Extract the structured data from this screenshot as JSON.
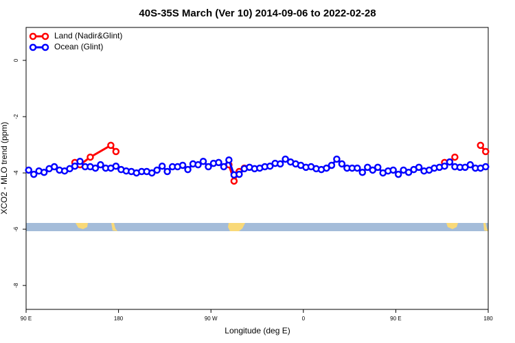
{
  "chart_data": {
    "type": "line",
    "title": "40S-35S March (Ver 10)   2014-09-06 to 2022-02-28",
    "x_label": "Longitude (deg E)",
    "y_label": "XCO2 - MLO trend (ppm)",
    "xlim": [
      90,
      540
    ],
    "ylim": [
      -8.85,
      1.17
    ],
    "xticks": [
      {
        "value": 90,
        "label": "90 E"
      },
      {
        "value": 180,
        "label": "180"
      },
      {
        "value": 270,
        "label": "90 W"
      },
      {
        "value": 360,
        "label": "0"
      },
      {
        "value": 450,
        "label": "90 E"
      },
      {
        "value": 540,
        "label": "180"
      }
    ],
    "yticks": [
      0,
      -2,
      -4,
      -6,
      -8
    ],
    "legend": "top-left",
    "series": [
      {
        "name": "Land (Nadir&Glint)",
        "color": "#ff0000",
        "x": [
          137.5,
          142.5,
          152.5,
          172.5,
          177.5,
          null,
          287.5,
          292.5,
          297.5,
          302.5,
          null,
          497.5,
          502.5,
          507.5,
          null,
          532.5,
          537.5
        ],
        "values": [
          -3.63,
          -3.71,
          -3.44,
          -3.02,
          -3.24,
          null,
          -3.71,
          -4.29,
          -3.95,
          -3.83,
          null,
          -3.63,
          -3.61,
          -3.44,
          null,
          -3.02,
          -3.24
        ]
      },
      {
        "name": "Ocean (Glint)",
        "color": "#0000ff",
        "x": [
          92.5,
          97.5,
          102.5,
          107.5,
          112.5,
          117.5,
          122.5,
          127.5,
          132.5,
          137.5,
          142.5,
          147.5,
          152.5,
          157.5,
          162.5,
          167.5,
          172.5,
          177.5,
          182.5,
          187.5,
          192.5,
          197.5,
          202.5,
          207.5,
          212.5,
          217.5,
          222.5,
          227.5,
          232.5,
          237.5,
          242.5,
          247.5,
          252.5,
          257.5,
          262.5,
          267.5,
          272.5,
          277.5,
          282.5,
          287.5,
          292.5,
          297.5,
          302.5,
          307.5,
          312.5,
          317.5,
          322.5,
          327.5,
          332.5,
          337.5,
          342.5,
          347.5,
          352.5,
          357.5,
          362.5,
          367.5,
          372.5,
          377.5,
          382.5,
          387.5,
          392.5,
          397.5,
          402.5,
          407.5,
          412.5,
          417.5,
          422.5,
          427.5,
          432.5,
          437.5,
          442.5,
          447.5,
          452.5,
          457.5,
          462.5,
          467.5,
          472.5,
          477.5,
          482.5,
          487.5,
          492.5,
          497.5,
          502.5,
          507.5,
          512.5,
          517.5,
          522.5,
          527.5,
          532.5,
          537.5
        ],
        "values": [
          -3.9,
          -4.05,
          -3.93,
          -3.98,
          -3.85,
          -3.78,
          -3.9,
          -3.93,
          -3.85,
          -3.76,
          -3.59,
          -3.78,
          -3.78,
          -3.83,
          -3.71,
          -3.83,
          -3.83,
          -3.76,
          -3.88,
          -3.93,
          -3.95,
          -4.0,
          -3.95,
          -3.95,
          -4.0,
          -3.9,
          -3.76,
          -3.95,
          -3.78,
          -3.78,
          -3.73,
          -3.88,
          -3.68,
          -3.71,
          -3.59,
          -3.78,
          -3.66,
          -3.63,
          -3.78,
          -3.54,
          -4.07,
          -4.05,
          -3.85,
          -3.8,
          -3.85,
          -3.83,
          -3.78,
          -3.76,
          -3.66,
          -3.68,
          -3.51,
          -3.61,
          -3.68,
          -3.73,
          -3.8,
          -3.78,
          -3.85,
          -3.88,
          -3.83,
          -3.73,
          -3.51,
          -3.68,
          -3.83,
          -3.83,
          -3.83,
          -3.98,
          -3.8,
          -3.9,
          -3.8,
          -4.0,
          -3.93,
          -3.9,
          -4.05,
          -3.9,
          -3.98,
          -3.88,
          -3.8,
          -3.93,
          -3.9,
          -3.83,
          -3.8,
          -3.76,
          -3.61,
          -3.78,
          -3.8,
          -3.8,
          -3.71,
          -3.83,
          -3.83,
          -3.78
        ]
      }
    ]
  }
}
